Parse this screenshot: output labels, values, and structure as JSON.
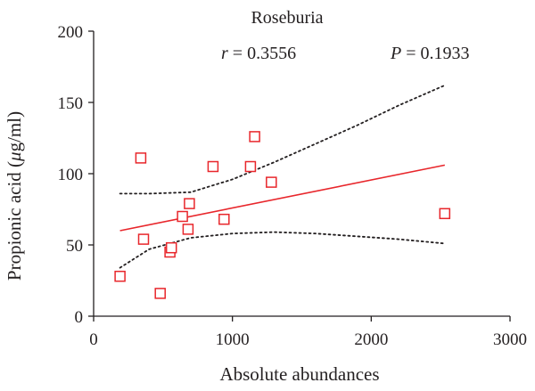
{
  "chart_data": {
    "type": "scatter",
    "title": "Roseburia",
    "xlabel": "Absolute abundances",
    "ylabel_parts": {
      "pre": "Propionic acid (",
      "mu": "μ",
      "post": "g/ml)"
    },
    "xlim": [
      0,
      3000
    ],
    "ylim": [
      0,
      200
    ],
    "x_ticks": [
      0,
      1000,
      2000,
      3000
    ],
    "y_ticks": [
      0,
      50,
      100,
      150,
      200
    ],
    "x_tick_labels": [
      "0",
      "1000",
      "2000",
      "3000"
    ],
    "y_tick_labels": [
      "0",
      "50",
      "100",
      "150",
      "200"
    ],
    "stats": {
      "r_symbol": "r",
      "r_text": " = 0.3556",
      "p_symbol": "P",
      "p_text": " = 0.1933"
    },
    "colors": {
      "points": "#e8262b",
      "fit_line": "#e8262b",
      "ci_band": "#231f20",
      "axes": "#231f20"
    },
    "points": [
      {
        "x": 190,
        "y": 28
      },
      {
        "x": 340,
        "y": 111
      },
      {
        "x": 360,
        "y": 54
      },
      {
        "x": 480,
        "y": 16
      },
      {
        "x": 550,
        "y": 45
      },
      {
        "x": 560,
        "y": 48
      },
      {
        "x": 640,
        "y": 70
      },
      {
        "x": 680,
        "y": 61
      },
      {
        "x": 690,
        "y": 79
      },
      {
        "x": 860,
        "y": 105
      },
      {
        "x": 940,
        "y": 68
      },
      {
        "x": 1130,
        "y": 105
      },
      {
        "x": 1160,
        "y": 126
      },
      {
        "x": 1280,
        "y": 94
      },
      {
        "x": 2530,
        "y": 72
      }
    ],
    "fit_line": {
      "x": [
        190,
        2530
      ],
      "y": [
        60,
        106
      ]
    },
    "ci_upper": {
      "x": [
        190,
        400,
        700,
        1000,
        1300,
        1600,
        1900,
        2200,
        2530
      ],
      "y": [
        86,
        86,
        87,
        96,
        108,
        121,
        134,
        148,
        162
      ]
    },
    "ci_lower": {
      "x": [
        190,
        400,
        700,
        1000,
        1300,
        1600,
        1900,
        2200,
        2530
      ],
      "y": [
        34,
        47,
        55,
        58,
        59,
        58,
        56,
        54,
        51
      ]
    }
  }
}
